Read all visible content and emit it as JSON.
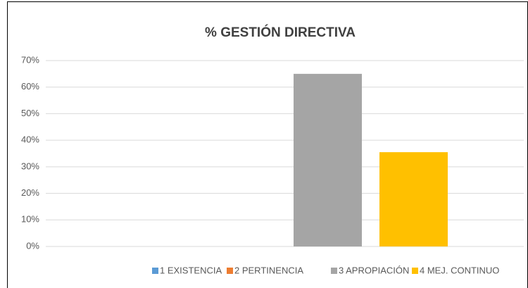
{
  "chart_data": {
    "type": "bar",
    "title": "% GESTIÓN DIRECTIVA",
    "categories": [
      null
    ],
    "series": [
      {
        "name": "1 EXISTENCIA",
        "color": "#5b9bd5",
        "values": [
          0
        ]
      },
      {
        "name": "2 PERTINENCIA",
        "color": "#ed7d31",
        "values": [
          0
        ]
      },
      {
        "name": "3 APROPIACIÓN",
        "color": "#a5a5a5",
        "values": [
          65
        ]
      },
      {
        "name": "4 MEJ. CONTINUO",
        "color": "#ffc000",
        "values": [
          35.5
        ]
      }
    ],
    "ylim": [
      0,
      70
    ],
    "yticks": [
      {
        "value": 0,
        "label": "0%"
      },
      {
        "value": 10,
        "label": "10%"
      },
      {
        "value": 20,
        "label": "20%"
      },
      {
        "value": 30,
        "label": "30%"
      },
      {
        "value": 40,
        "label": "40%"
      },
      {
        "value": 50,
        "label": "50%"
      },
      {
        "value": 60,
        "label": "60%"
      },
      {
        "value": 70,
        "label": "70%"
      }
    ],
    "grid": true,
    "legend": "bottom"
  }
}
